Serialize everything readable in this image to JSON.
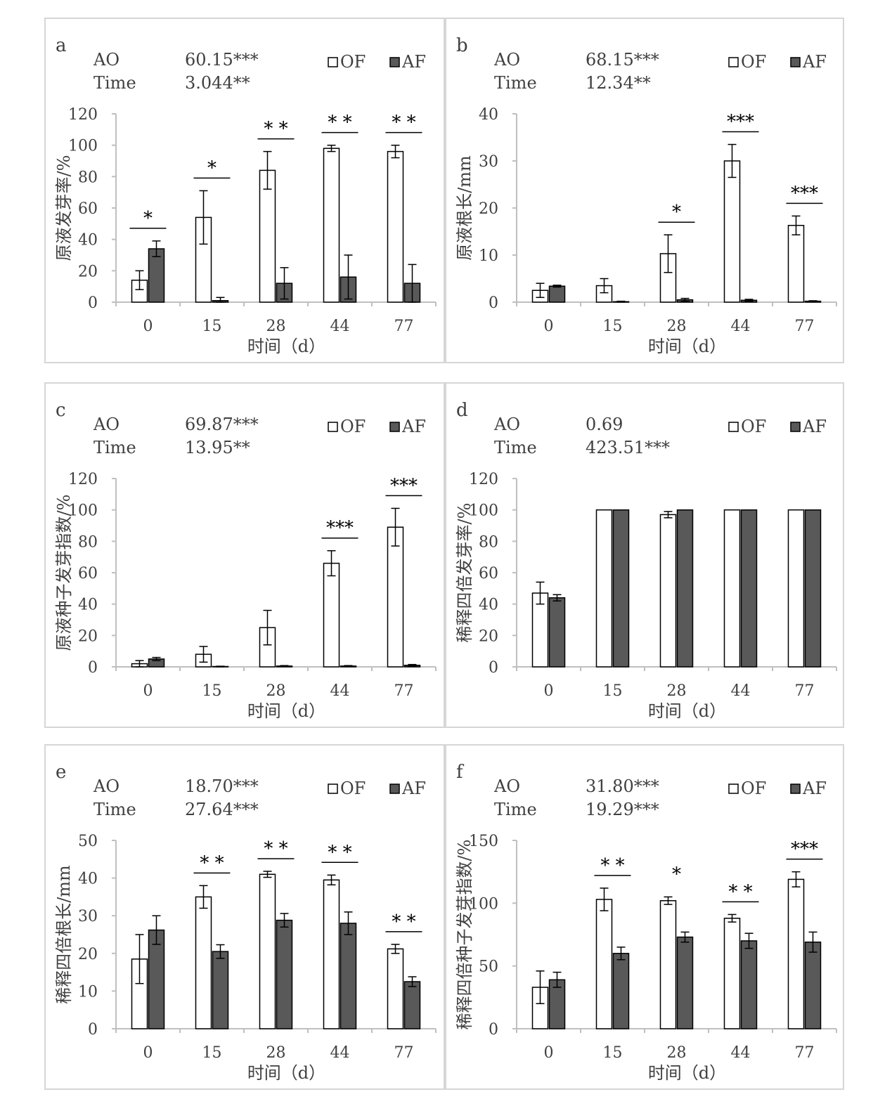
{
  "chart_data": [
    {
      "type": "bar",
      "panel_label": "a",
      "stats": [
        {
          "label": "AO",
          "value": "60.15***"
        },
        {
          "label": "Time",
          "value": "3.044**"
        }
      ],
      "categories": [
        "0",
        "15",
        "28",
        "44",
        "77"
      ],
      "series": [
        {
          "name": "OF",
          "color": "#ffffff",
          "values": [
            14,
            54,
            84,
            98,
            96
          ],
          "errors": [
            6,
            17,
            12,
            2,
            4
          ]
        },
        {
          "name": "AF",
          "color": "#595959",
          "values": [
            34,
            1,
            12,
            16,
            12
          ],
          "errors": [
            5,
            2,
            10,
            14,
            12
          ]
        }
      ],
      "significance": [
        "*",
        "*",
        "* *",
        "* *",
        "* *"
      ],
      "ylim": [
        0,
        120
      ],
      "yticks": [
        "0",
        "20",
        "40",
        "60",
        "80",
        "100",
        "120"
      ],
      "ylabel": "原液发芽率/%",
      "xlabel": "时间（d）"
    },
    {
      "type": "bar",
      "panel_label": "b",
      "stats": [
        {
          "label": "AO",
          "value": "68.15***"
        },
        {
          "label": "Time",
          "value": "12.34**"
        }
      ],
      "categories": [
        "0",
        "15",
        "28",
        "44",
        "77"
      ],
      "series": [
        {
          "name": "OF",
          "color": "#ffffff",
          "values": [
            2.5,
            3.5,
            10.3,
            30,
            16.3
          ],
          "errors": [
            1.5,
            1.5,
            4,
            3.5,
            2
          ]
        },
        {
          "name": "AF",
          "color": "#595959",
          "values": [
            3.4,
            0.1,
            0.5,
            0.4,
            0.2
          ],
          "errors": [
            0.2,
            0.1,
            0.3,
            0.2,
            0.1
          ]
        }
      ],
      "significance": [
        "",
        "",
        "*",
        "***",
        "***"
      ],
      "ylim": [
        0,
        40
      ],
      "yticks": [
        "0",
        "10",
        "20",
        "30",
        "40"
      ],
      "ylabel": "原液根长/mm",
      "xlabel": "时间（d）"
    },
    {
      "type": "bar",
      "panel_label": "c",
      "stats": [
        {
          "label": "AO",
          "value": "69.87***"
        },
        {
          "label": "Time",
          "value": "13.95**"
        }
      ],
      "categories": [
        "0",
        "15",
        "28",
        "44",
        "77"
      ],
      "series": [
        {
          "name": "OF",
          "color": "#ffffff",
          "values": [
            2,
            8,
            25,
            66,
            89
          ],
          "errors": [
            2,
            5,
            11,
            8,
            12
          ]
        },
        {
          "name": "AF",
          "color": "#595959",
          "values": [
            5,
            0.2,
            0.5,
            0.5,
            1
          ],
          "errors": [
            1,
            0.2,
            0.3,
            0.3,
            0.5
          ]
        }
      ],
      "significance": [
        "",
        "",
        "",
        "***",
        "***"
      ],
      "ylim": [
        0,
        120
      ],
      "yticks": [
        "0",
        "20",
        "40",
        "60",
        "80",
        "100",
        "120"
      ],
      "ylabel": "原液种子发芽指数/%",
      "xlabel": "时间（d）"
    },
    {
      "type": "bar",
      "panel_label": "d",
      "stats": [
        {
          "label": "AO",
          "value": "0.69"
        },
        {
          "label": "Time",
          "value": "423.51***"
        }
      ],
      "categories": [
        "0",
        "15",
        "28",
        "44",
        "77"
      ],
      "series": [
        {
          "name": "OF",
          "color": "#ffffff",
          "values": [
            47,
            100,
            97,
            100,
            100
          ],
          "errors": [
            7,
            0,
            2,
            0,
            0
          ]
        },
        {
          "name": "AF",
          "color": "#595959",
          "values": [
            44,
            100,
            100,
            100,
            100
          ],
          "errors": [
            2,
            0,
            0,
            0,
            0
          ]
        }
      ],
      "significance": [
        "",
        "",
        "",
        "",
        ""
      ],
      "ylim": [
        0,
        120
      ],
      "yticks": [
        "0",
        "20",
        "40",
        "60",
        "80",
        "100",
        "120"
      ],
      "ylabel": "稀释四倍发芽率/%",
      "xlabel": "时间（d）"
    },
    {
      "type": "bar",
      "panel_label": "e",
      "stats": [
        {
          "label": "AO",
          "value": "18.70***"
        },
        {
          "label": "Time",
          "value": "27.64***"
        }
      ],
      "categories": [
        "0",
        "15",
        "28",
        "44",
        "77"
      ],
      "series": [
        {
          "name": "OF",
          "color": "#ffffff",
          "values": [
            18.5,
            35,
            41,
            39.5,
            21.2
          ],
          "errors": [
            6.5,
            3,
            0.8,
            1.3,
            1.2
          ]
        },
        {
          "name": "AF",
          "color": "#595959",
          "values": [
            26.2,
            20.5,
            28.8,
            28,
            12.5
          ],
          "errors": [
            3.8,
            1.8,
            1.8,
            3,
            1.3
          ]
        }
      ],
      "significance": [
        "",
        "* *",
        "* *",
        "* *",
        "* *"
      ],
      "ylim": [
        0,
        50
      ],
      "yticks": [
        "0",
        "10",
        "20",
        "30",
        "40",
        "50"
      ],
      "ylabel": "稀释四倍根长/mm",
      "xlabel": "时间（d）"
    },
    {
      "type": "bar",
      "panel_label": "f",
      "stats": [
        {
          "label": "AO",
          "value": "31.80***"
        },
        {
          "label": "Time",
          "value": "19.29***"
        }
      ],
      "categories": [
        "0",
        "15",
        "28",
        "44",
        "77"
      ],
      "series": [
        {
          "name": "OF",
          "color": "#ffffff",
          "values": [
            33,
            103,
            102,
            88,
            119
          ],
          "errors": [
            13,
            9,
            3,
            3,
            6
          ]
        },
        {
          "name": "AF",
          "color": "#595959",
          "values": [
            39,
            60,
            73,
            70,
            69
          ],
          "errors": [
            6,
            5,
            4,
            6,
            8
          ]
        }
      ],
      "significance": [
        "",
        "* *",
        "*",
        "* *",
        "***"
      ],
      "significance_line": [
        false,
        true,
        false,
        true,
        true
      ],
      "ylim": [
        0,
        150
      ],
      "yticks": [
        "0",
        "50",
        "100",
        "150"
      ],
      "ylabel": "稀释四倍种子发芽指数/%",
      "xlabel": "时间（d）"
    }
  ]
}
